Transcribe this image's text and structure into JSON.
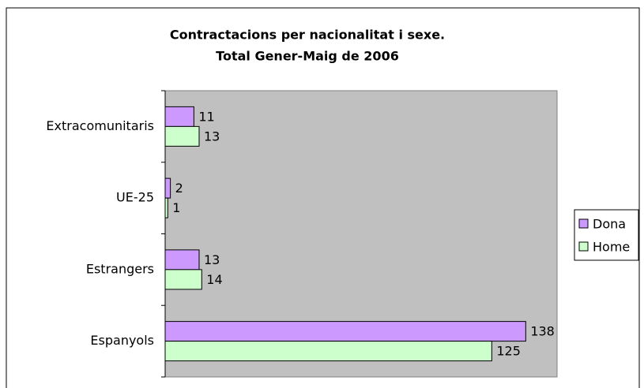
{
  "chart_data": {
    "type": "hbar",
    "title": [
      "Contractacions per nacionalitat i sexe.",
      "Total Gener-Maig de 2006"
    ],
    "categories": [
      "Extracomunitaris",
      "UE-25",
      "Estrangers",
      "Espanyols"
    ],
    "series": [
      {
        "name": "Dona",
        "color": "#cc99ff",
        "values": [
          11,
          2,
          13,
          138
        ]
      },
      {
        "name": "Home",
        "color": "#ccffcc",
        "values": [
          13,
          1,
          14,
          125
        ]
      }
    ],
    "xlim": [
      0,
      150
    ],
    "legend": "right"
  }
}
